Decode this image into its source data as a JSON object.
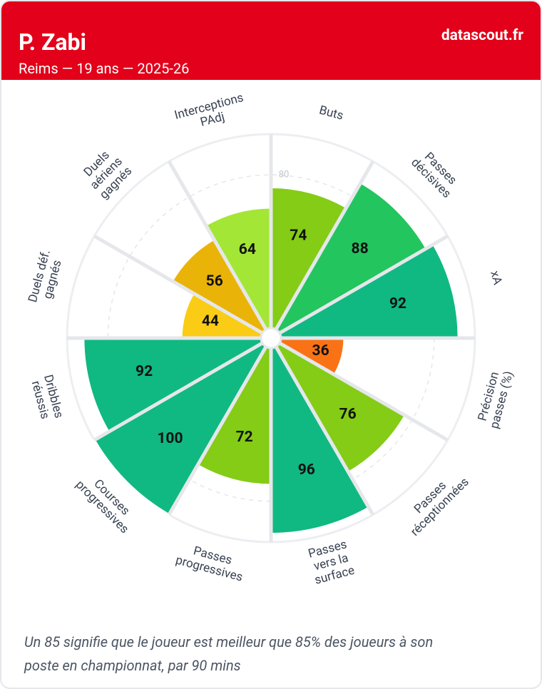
{
  "header": {
    "title": "P. Zabi",
    "subtitle": "Reims — 19 ans — 2025-26",
    "brand": "datascout.fr"
  },
  "chart_data": {
    "type": "pizza",
    "categories": [
      [
        "Buts"
      ],
      [
        "Passes",
        "décisives"
      ],
      [
        "xA"
      ],
      [
        "Précision",
        "passes (%)"
      ],
      [
        "Passes",
        "réceptionnées"
      ],
      [
        "Passes",
        "vers la",
        "surface"
      ],
      [
        "Passes",
        "progressives"
      ],
      [
        "Courses",
        "progressives"
      ],
      [
        "Dribbles",
        "réussis"
      ],
      [
        "Duels déf.",
        "gagnés"
      ],
      [
        "Duels",
        "aériens",
        "gagnés"
      ],
      [
        "Interceptions",
        "PAdj"
      ]
    ],
    "values": [
      74,
      88,
      92,
      36,
      76,
      96,
      72,
      100,
      92,
      44,
      56,
      64
    ],
    "colors": [
      "#84cc16",
      "#22c55e",
      "#10b981",
      "#f97316",
      "#84cc16",
      "#10b981",
      "#84cc16",
      "#10b981",
      "#10b981",
      "#facc15",
      "#eab308",
      "#a3e635"
    ],
    "rlim": [
      0,
      100
    ],
    "rticks": [
      80
    ]
  },
  "footer": {
    "note": [
      "Un 85 signifie que le joueur est meilleur que 85% des joueurs à son",
      "poste en championnat, par 90 mins"
    ]
  }
}
